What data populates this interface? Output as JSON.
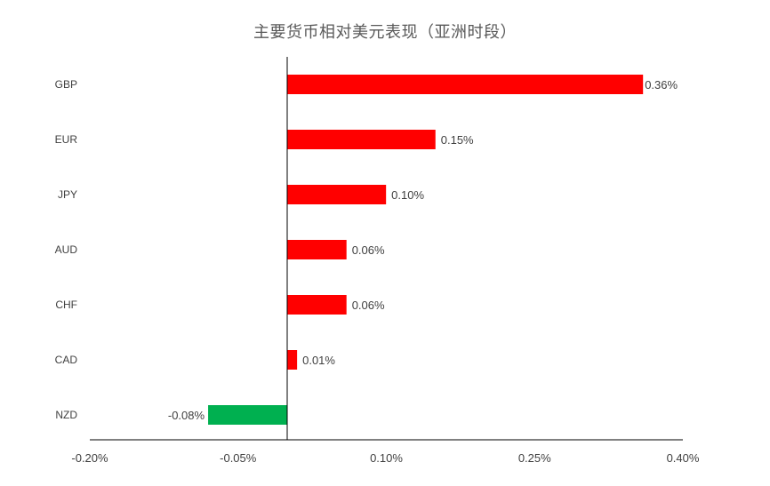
{
  "chart_data": {
    "type": "bar",
    "orientation": "horizontal",
    "title": "主要货币相对美元表现（亚洲时段）",
    "categories": [
      "GBP",
      "EUR",
      "JPY",
      "AUD",
      "CHF",
      "CAD",
      "NZD"
    ],
    "values": [
      0.36,
      0.15,
      0.1,
      0.06,
      0.06,
      0.01,
      -0.08
    ],
    "value_labels": [
      "0.36%",
      "0.15%",
      "0.10%",
      "0.06%",
      "0.06%",
      "0.01%",
      "-0.08%"
    ],
    "x_tick_labels": [
      "-0.20%",
      "-0.05%",
      "0.10%",
      "0.25%",
      "0.40%"
    ],
    "x_ticks": [
      -0.2,
      -0.05,
      0.1,
      0.25,
      0.4
    ],
    "xlim": [
      -0.2,
      0.4
    ],
    "grid": false,
    "legend": "none",
    "positive_color": "#ff0000",
    "negative_color": "#00b050",
    "axis_color": "#000000",
    "text_color": "#404040"
  }
}
